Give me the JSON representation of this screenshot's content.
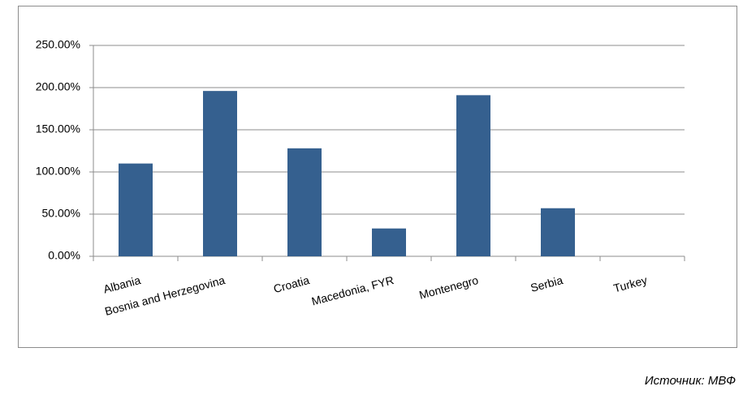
{
  "chart_data": {
    "type": "bar",
    "categories": [
      "Albania",
      "Bosnia and Herzegovina",
      "Croatia",
      "Macedonia, FYR",
      "Montenegro",
      "Serbia",
      "Turkey"
    ],
    "values": [
      110,
      196,
      128,
      33,
      191,
      57,
      0
    ],
    "color": "#35608f",
    "ylim": [
      0,
      250
    ],
    "yticks": [
      {
        "value": 0,
        "label": "0.00%"
      },
      {
        "value": 50,
        "label": "50.00%"
      },
      {
        "value": 100,
        "label": "100.00%"
      },
      {
        "value": 150,
        "label": "150.00%"
      },
      {
        "value": 200,
        "label": "200.00%"
      },
      {
        "value": 250,
        "label": "250.00%"
      }
    ],
    "grid": true,
    "source": "Источник: МВФ"
  }
}
